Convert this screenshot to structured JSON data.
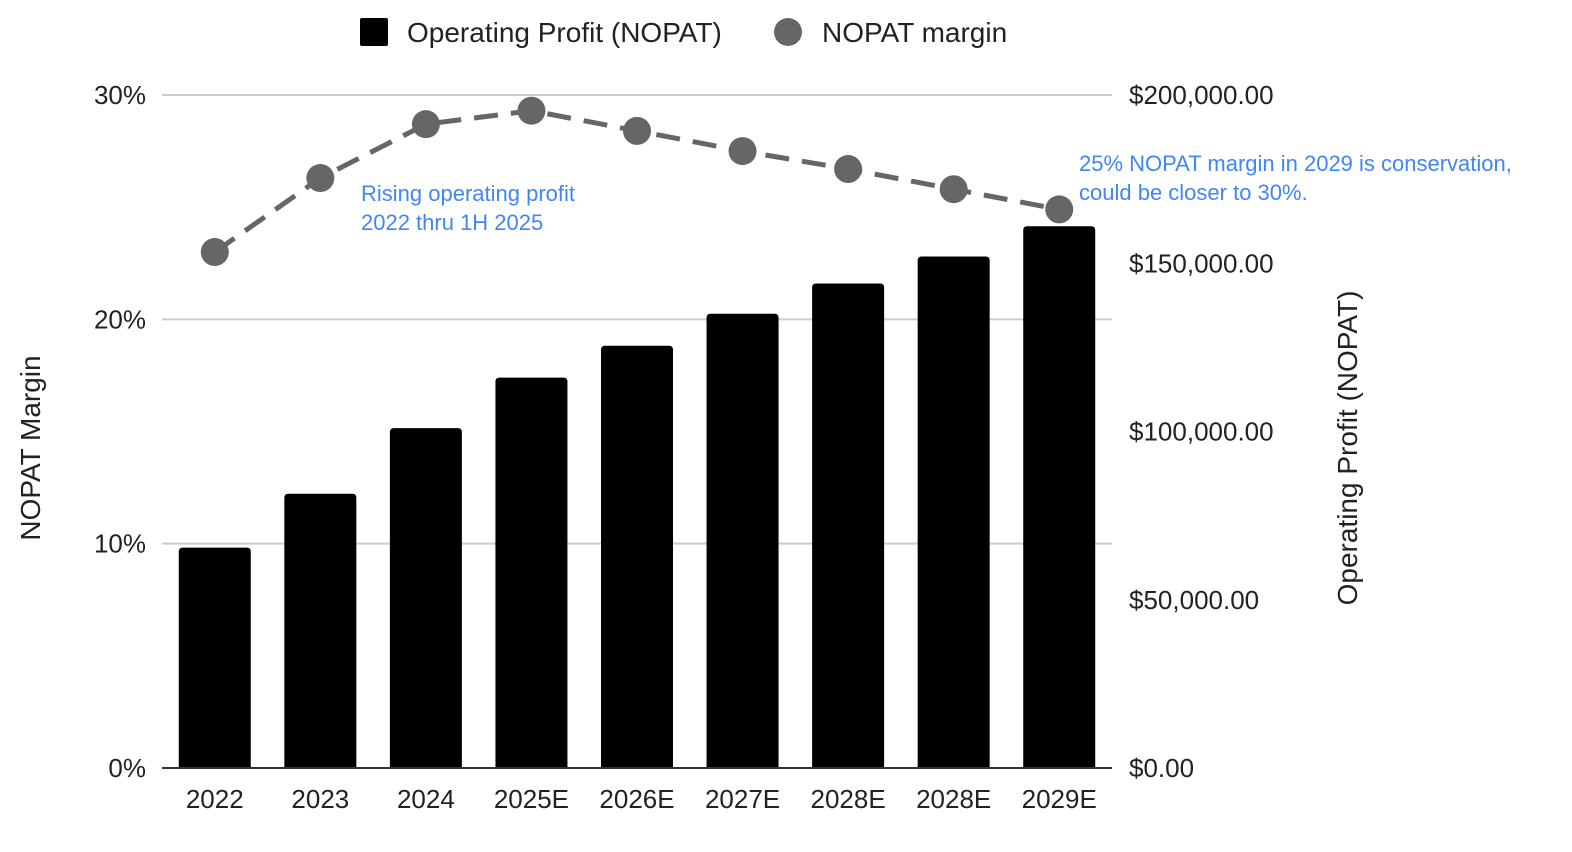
{
  "chart_data": {
    "type": "bar",
    "categories": [
      "2022",
      "2023",
      "2024",
      "2025E",
      "2026E",
      "2027E",
      "2028E",
      "2028E",
      "2029E"
    ],
    "series": [
      {
        "name": "Operating Profit (NOPAT)",
        "type": "bar",
        "axis": "right",
        "color": "#000000",
        "values": [
          65500,
          81500,
          101000,
          116000,
          125500,
          135000,
          144000,
          152000,
          161000
        ]
      },
      {
        "name": "NOPAT margin",
        "type": "line",
        "axis": "left",
        "color": "#666666",
        "line_style": "dashed",
        "marker": "circle",
        "values": [
          0.23,
          0.263,
          0.287,
          0.293,
          0.284,
          0.275,
          0.267,
          0.258,
          0.249
        ]
      }
    ],
    "y_left": {
      "label": "NOPAT Margin",
      "range": [
        0,
        0.3
      ],
      "ticks": [
        0,
        0.1,
        0.2,
        0.3
      ],
      "tick_labels": [
        "0%",
        "10%",
        "20%",
        "30%"
      ]
    },
    "y_right": {
      "label": "Operating Profit (NOPAT)",
      "range": [
        0,
        200000
      ],
      "ticks": [
        0,
        50000,
        100000,
        150000,
        200000
      ],
      "tick_labels": [
        "$0.00",
        "$50,000.00",
        "$100,000.00",
        "$150,000.00",
        "$200,000.00"
      ]
    },
    "legend": {
      "position": "top",
      "items": [
        {
          "label": "Operating Profit (NOPAT)",
          "marker": "square",
          "color": "#000000"
        },
        {
          "label": "NOPAT margin",
          "marker": "circle",
          "color": "#666666"
        }
      ]
    },
    "annotations": [
      {
        "lines": [
          "Rising operating profit",
          "2022 thru 1H 2025"
        ],
        "color": "#4285f4",
        "near_category": "2023"
      },
      {
        "lines": [
          "25% NOPAT margin in 2029 is conservation,",
          "could be closer to 30%."
        ],
        "color": "#4285f4",
        "near_category": "2029E"
      }
    ],
    "grid": true
  }
}
